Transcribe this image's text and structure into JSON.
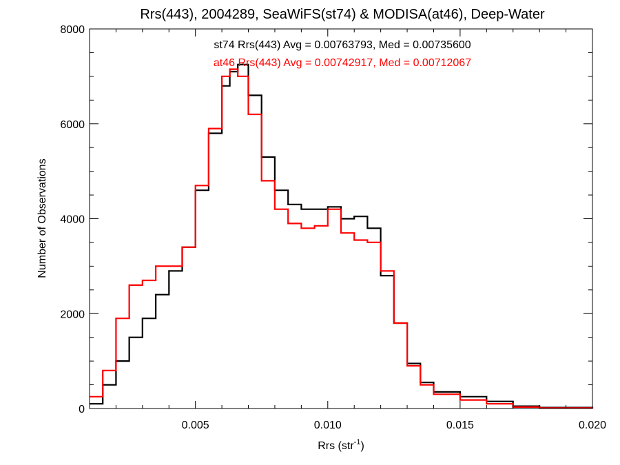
{
  "chart_data": {
    "type": "line",
    "title": "Rrs(443), 2004289, SeaWiFS(st74) & MODISA(at46), Deep-Water",
    "xlabel_main": "Rrs (str",
    "xlabel_sup": "-1",
    "xlabel_close": ")",
    "ylabel": "Number of Observations",
    "xlim": [
      0.001,
      0.02
    ],
    "ylim": [
      0,
      8000
    ],
    "grid": false,
    "step": true,
    "x_ticks": [
      "0.005",
      "0.010",
      "0.015",
      "0.020"
    ],
    "y_ticks": [
      "0",
      "2000",
      "4000",
      "6000",
      "8000"
    ],
    "annotations": [
      {
        "text": "st74 Rrs(443) Avg = 0.00763793, Med = 0.00735600",
        "color": "#000000"
      },
      {
        "text": "at46 Rrs(443) Avg = 0.00742917, Med = 0.00712067",
        "color": "#ff0000"
      }
    ],
    "series": [
      {
        "color": "#000000",
        "x": [
          0.001,
          0.0015,
          0.002,
          0.0025,
          0.003,
          0.0035,
          0.004,
          0.0045,
          0.005,
          0.0055,
          0.006,
          0.0063,
          0.0066,
          0.007,
          0.0075,
          0.008,
          0.0085,
          0.009,
          0.0095,
          0.01,
          0.0105,
          0.011,
          0.0115,
          0.012,
          0.0125,
          0.013,
          0.0135,
          0.014,
          0.015,
          0.016,
          0.017,
          0.018,
          0.02
        ],
        "y": [
          100,
          500,
          1000,
          1500,
          1900,
          2400,
          2900,
          3400,
          4600,
          5800,
          6800,
          7100,
          7250,
          6600,
          5300,
          4600,
          4300,
          4200,
          4200,
          4250,
          4000,
          4050,
          3800,
          2800,
          1800,
          950,
          550,
          350,
          250,
          150,
          50,
          20,
          0
        ]
      },
      {
        "color": "#ff0000",
        "x": [
          0.001,
          0.0015,
          0.002,
          0.0025,
          0.003,
          0.0035,
          0.004,
          0.0045,
          0.005,
          0.0055,
          0.006,
          0.0063,
          0.0066,
          0.007,
          0.0075,
          0.008,
          0.0085,
          0.009,
          0.0095,
          0.01,
          0.0105,
          0.011,
          0.0115,
          0.012,
          0.0125,
          0.013,
          0.0135,
          0.014,
          0.015,
          0.016,
          0.017,
          0.018,
          0.02
        ],
        "y": [
          250,
          800,
          1900,
          2600,
          2700,
          3000,
          3000,
          3400,
          4700,
          5900,
          7000,
          7150,
          7000,
          6200,
          4800,
          4200,
          3900,
          3800,
          3850,
          4200,
          3700,
          3550,
          3500,
          2900,
          1800,
          900,
          500,
          300,
          180,
          100,
          30,
          10,
          0
        ]
      }
    ]
  }
}
